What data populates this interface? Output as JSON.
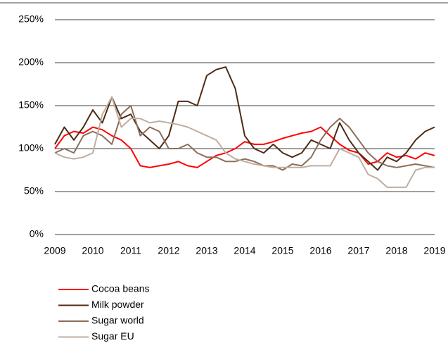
{
  "chart_data": {
    "type": "line",
    "x": [
      2009,
      2009.25,
      2009.5,
      2009.75,
      2010,
      2010.25,
      2010.5,
      2010.75,
      2011,
      2011.25,
      2011.5,
      2011.75,
      2012,
      2012.25,
      2012.5,
      2012.75,
      2013,
      2013.25,
      2013.5,
      2013.75,
      2014,
      2014.25,
      2014.5,
      2014.75,
      2015,
      2015.25,
      2015.5,
      2015.75,
      2016,
      2016.25,
      2016.5,
      2016.75,
      2017,
      2017.25,
      2017.5,
      2017.75,
      2018,
      2018.25,
      2018.5,
      2018.75,
      2019
    ],
    "series": [
      {
        "name": "Cocoa beans",
        "color": "#ff0000",
        "values": [
          100,
          115,
          120,
          118,
          125,
          122,
          115,
          110,
          100,
          80,
          78,
          80,
          82,
          85,
          80,
          78,
          85,
          92,
          95,
          100,
          108,
          105,
          105,
          108,
          112,
          115,
          118,
          120,
          125,
          115,
          105,
          98,
          95,
          82,
          85,
          95,
          90,
          92,
          88,
          95,
          92
        ]
      },
      {
        "name": "Milk powder",
        "color": "#4d2b16",
        "values": [
          105,
          125,
          110,
          125,
          145,
          130,
          160,
          135,
          140,
          120,
          110,
          100,
          115,
          155,
          155,
          150,
          185,
          192,
          195,
          170,
          115,
          100,
          95,
          105,
          95,
          90,
          95,
          110,
          105,
          100,
          130,
          110,
          95,
          85,
          75,
          90,
          85,
          95,
          110,
          120,
          125
        ]
      },
      {
        "name": "Sugar world",
        "color": "#8b6e5a",
        "values": [
          95,
          100,
          95,
          115,
          120,
          115,
          105,
          140,
          150,
          115,
          125,
          120,
          100,
          100,
          105,
          95,
          90,
          90,
          85,
          85,
          88,
          85,
          80,
          80,
          75,
          82,
          80,
          90,
          110,
          125,
          135,
          125,
          110,
          95,
          85,
          80,
          78,
          80,
          82,
          80,
          78
        ]
      },
      {
        "name": "Sugar EU",
        "color": "#bfaea0",
        "values": [
          95,
          90,
          88,
          90,
          95,
          140,
          160,
          125,
          135,
          135,
          130,
          132,
          130,
          128,
          125,
          120,
          115,
          110,
          95,
          88,
          85,
          82,
          80,
          78,
          78,
          78,
          78,
          80,
          80,
          80,
          100,
          95,
          90,
          70,
          65,
          55,
          55,
          55,
          75,
          78,
          78
        ]
      }
    ],
    "xlim": [
      2009,
      2019
    ],
    "xticks": [
      2009,
      2010,
      2011,
      2012,
      2013,
      2014,
      2015,
      2016,
      2017,
      2018,
      2019
    ],
    "ylim": [
      0,
      250
    ],
    "yticks": [
      {
        "value": 0,
        "label": "0%"
      },
      {
        "value": 50,
        "label": "50%"
      },
      {
        "value": 100,
        "label": "100%"
      },
      {
        "value": 150,
        "label": "150%"
      },
      {
        "value": 200,
        "label": "200%"
      },
      {
        "value": 250,
        "label": "250%"
      }
    ],
    "grid": true
  }
}
